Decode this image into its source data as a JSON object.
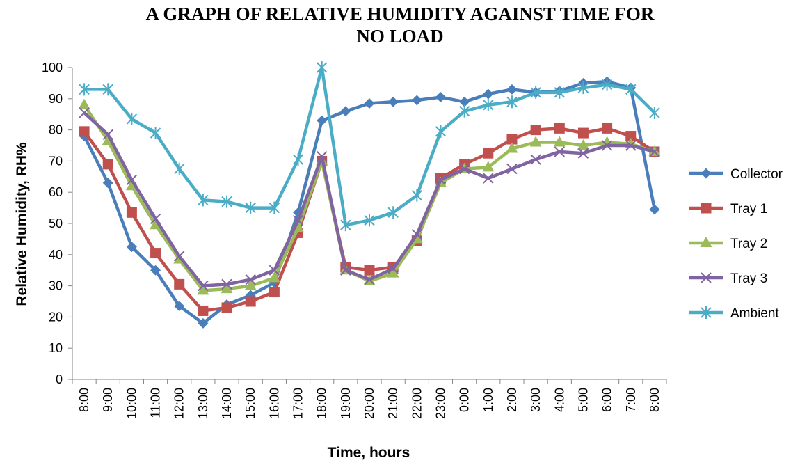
{
  "chart_data": {
    "type": "line",
    "title_lines": [
      "A GRAPH OF RELATIVE HUMIDITY AGAINST TIME FOR",
      "NO LOAD"
    ],
    "xlabel": "Time, hours",
    "ylabel": "Relative Humidity, RH%",
    "ylim": [
      0,
      100
    ],
    "yticks": [
      0,
      10,
      20,
      30,
      40,
      50,
      60,
      70,
      80,
      90,
      100
    ],
    "grid": false,
    "legend_position": "right",
    "categories": [
      "8:00",
      "9:00",
      "10:00",
      "11:00",
      "12:00",
      "13:00",
      "14:00",
      "15:00",
      "16:00",
      "17:00",
      "18:00",
      "19:00",
      "20:00",
      "21:00",
      "22:00",
      "23:00",
      "0:00",
      "1:00",
      "2:00",
      "3:00",
      "4:00",
      "5:00",
      "6:00",
      "7:00",
      "8:00"
    ],
    "series": [
      {
        "name": "Collector",
        "color": "#4a7ebb",
        "marker": "diamond",
        "values": [
          78,
          63,
          42.5,
          35,
          23.5,
          18,
          24,
          27,
          31,
          53.5,
          83,
          86,
          88.5,
          89,
          89.5,
          90.5,
          89,
          91.5,
          93,
          92,
          92.5,
          95,
          95.5,
          93.5,
          54.5
        ]
      },
      {
        "name": "Tray 1",
        "color": "#c0504d",
        "marker": "square",
        "values": [
          79.5,
          69,
          53.5,
          40.5,
          30.5,
          22,
          23,
          25,
          28,
          47,
          70,
          36,
          35,
          36,
          44.5,
          64.5,
          69,
          72.5,
          77,
          80,
          80.5,
          79,
          80.5,
          78,
          73
        ]
      },
      {
        "name": "Tray 2",
        "color": "#9bbb59",
        "marker": "triangle",
        "values": [
          88,
          76.5,
          62,
          49.5,
          38.5,
          28.5,
          29,
          30,
          32.5,
          48.5,
          70,
          35,
          31.5,
          34,
          45,
          63,
          67.5,
          68,
          74,
          76,
          76,
          75,
          76,
          75.5,
          73
        ]
      },
      {
        "name": "Tray 3",
        "color": "#8064a2",
        "marker": "x",
        "values": [
          85.5,
          78.5,
          64,
          51.5,
          39.5,
          30,
          30.5,
          32,
          35,
          51,
          71.5,
          35,
          32,
          35.5,
          46.5,
          64,
          67.5,
          64.5,
          67.5,
          70.5,
          73,
          72.5,
          75,
          75,
          73
        ]
      },
      {
        "name": "Ambient",
        "color": "#4bacc6",
        "marker": "star",
        "values": [
          93,
          93,
          83.5,
          79,
          67.5,
          57.5,
          57,
          55,
          55,
          70.5,
          100,
          49.5,
          51,
          53.5,
          59,
          79.5,
          86,
          88,
          89,
          92,
          92,
          93.5,
          94.5,
          93,
          85.5
        ]
      }
    ]
  }
}
